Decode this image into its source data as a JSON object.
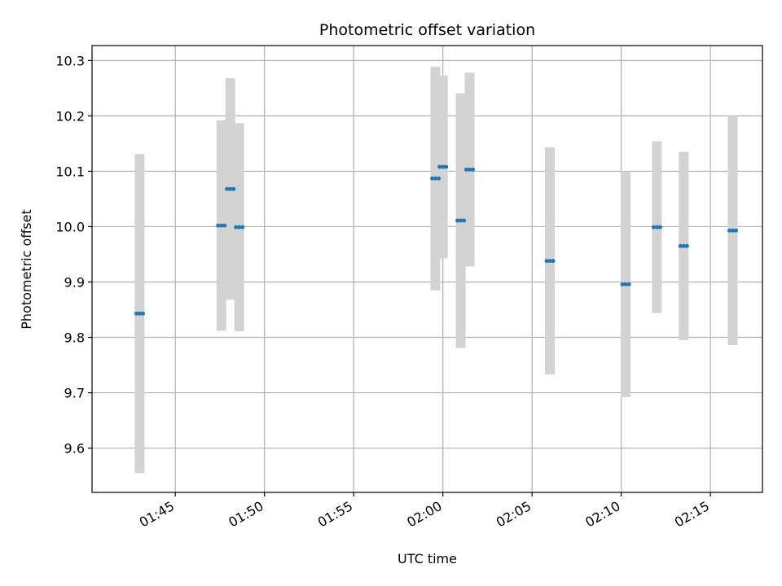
{
  "chart_data": {
    "type": "errorbar",
    "title": "Photometric offset variation",
    "xlabel": "UTC time",
    "ylabel": "Photometric offset",
    "x_ticks": [
      "01:45",
      "01:50",
      "01:55",
      "02:00",
      "02:05",
      "02:10",
      "02:15"
    ],
    "y_ticks": [
      "9.6",
      "9.7",
      "9.8",
      "9.9",
      "10.0",
      "10.1",
      "10.2",
      "10.3"
    ],
    "xlim": [
      "01:40:20",
      "02:17:55"
    ],
    "ylim": [
      9.52,
      10.327
    ],
    "grid": true,
    "colors": {
      "point": "#1f77b4",
      "errorbar": "#d3d3d3",
      "grid": "#b0b0b0"
    },
    "points": [
      {
        "time": "01:43:00",
        "y": 9.843,
        "err": 0.288
      },
      {
        "time": "01:47:35",
        "y": 10.002,
        "err": 0.19
      },
      {
        "time": "01:48:05",
        "y": 10.068,
        "err": 0.2
      },
      {
        "time": "01:48:35",
        "y": 9.999,
        "err": 0.188
      },
      {
        "time": "01:59:35",
        "y": 10.087,
        "err": 0.202
      },
      {
        "time": "02:00:00",
        "y": 10.108,
        "err": 0.165
      },
      {
        "time": "02:01:00",
        "y": 10.011,
        "err": 0.23
      },
      {
        "time": "02:01:30",
        "y": 10.103,
        "err": 0.175
      },
      {
        "time": "02:06:00",
        "y": 9.938,
        "err": 0.205
      },
      {
        "time": "02:10:15",
        "y": 9.896,
        "err": 0.204
      },
      {
        "time": "02:12:00",
        "y": 9.999,
        "err": 0.155
      },
      {
        "time": "02:13:30",
        "y": 9.965,
        "err": 0.17
      },
      {
        "time": "02:16:15",
        "y": 9.993,
        "err": 0.207
      }
    ]
  }
}
